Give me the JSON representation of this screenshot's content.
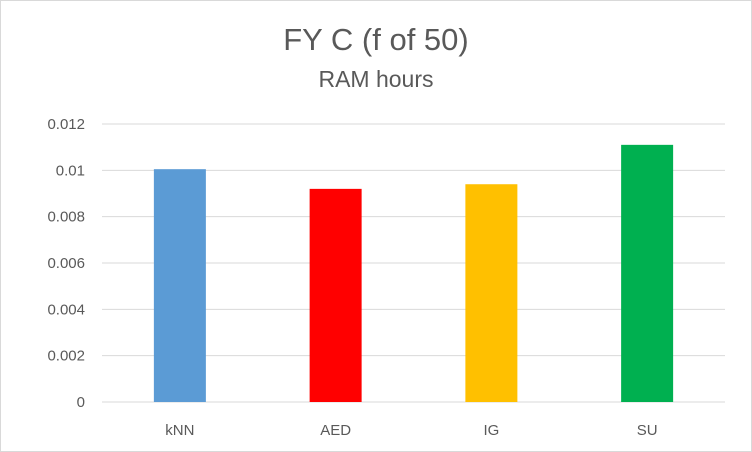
{
  "chart_data": {
    "type": "bar",
    "title": "FY C (f of 50)",
    "subtitle": "RAM hours",
    "xlabel": "",
    "ylabel": "",
    "categories": [
      "kNN",
      "AED",
      "IG",
      "SU"
    ],
    "values": [
      0.01005,
      0.0092,
      0.0094,
      0.0111
    ],
    "colors": [
      "#5b9bd5",
      "#ff0000",
      "#ffc000",
      "#00b050"
    ],
    "ylim": [
      0,
      0.012
    ],
    "yticks": [
      "0",
      "0.002",
      "0.004",
      "0.006",
      "0.008",
      "0.01",
      "0.012"
    ],
    "grid": true,
    "legend": "none"
  }
}
